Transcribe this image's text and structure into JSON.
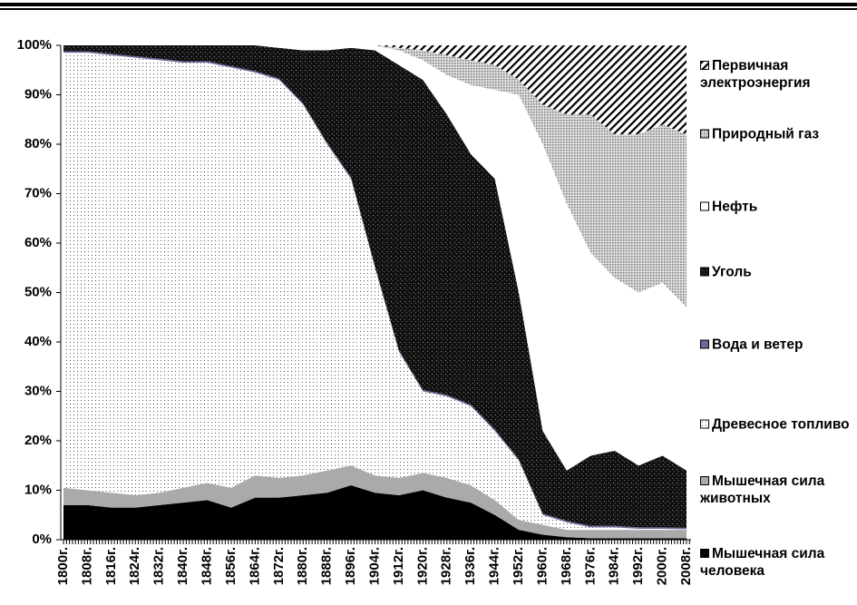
{
  "chart_data": {
    "type": "stacked_area",
    "categories": [
      "1800г.",
      "1808г.",
      "1816г.",
      "1824г.",
      "1832г.",
      "1840г.",
      "1848г.",
      "1856г.",
      "1864г.",
      "1872г.",
      "1880г.",
      "1888г.",
      "1896г.",
      "1904г.",
      "1912г.",
      "1920г.",
      "1928г.",
      "1936г.",
      "1944г.",
      "1952г.",
      "1960г.",
      "1968г.",
      "1976г.",
      "1984г.",
      "1992г.",
      "2000г.",
      "2008г."
    ],
    "series": [
      {
        "name": "Мышечная сила человека",
        "color": "#000000",
        "pattern": "solid",
        "values": [
          7,
          7,
          6.5,
          6.5,
          7,
          7.5,
          8,
          6.5,
          8.5,
          8.5,
          9,
          9.5,
          11,
          9.5,
          9,
          10,
          8.5,
          7.5,
          5,
          2,
          1,
          0.5,
          0.3,
          0.3,
          0.3,
          0.3,
          0.3
        ]
      },
      {
        "name": "Мышечная сила животных",
        "color": "#aaaaaa",
        "pattern": "solid",
        "values": [
          3.5,
          3,
          3,
          2.5,
          2.5,
          3,
          3.5,
          4,
          4.5,
          4,
          4,
          4.5,
          4,
          3.5,
          3.5,
          3.5,
          4,
          3.5,
          3,
          2,
          2,
          1.5,
          1.7,
          1.7,
          1.7,
          1.7,
          1.7
        ]
      },
      {
        "name": "Древесное топливо",
        "color": "#ffffff",
        "pattern": "dots",
        "values": [
          88,
          88.5,
          88.5,
          88.5,
          87.5,
          86,
          85,
          85,
          81.5,
          80.5,
          75,
          66,
          58,
          42,
          25.5,
          16.5,
          16.5,
          16,
          14,
          12,
          2,
          1.5,
          0.5,
          0.5,
          0.2,
          0.2,
          0.1
        ]
      },
      {
        "name": "Вода и ветер",
        "color": "#6b6b9a",
        "pattern": "solid",
        "values": [
          0.3,
          0.3,
          0.3,
          0.3,
          0.3,
          0.3,
          0.3,
          0.3,
          0.3,
          0.3,
          0.3,
          0.3,
          0.3,
          0.3,
          0.3,
          0.3,
          0.3,
          0.3,
          0.3,
          0.3,
          0.3,
          0.3,
          0.3,
          0.3,
          0.3,
          0.3,
          0.3
        ]
      },
      {
        "name": "Уголь",
        "color": "#111111",
        "pattern": "speckle",
        "values": [
          1.2,
          1.2,
          1.7,
          2.2,
          2.7,
          3.2,
          3.2,
          4.2,
          5.2,
          6.2,
          10.7,
          18.7,
          26.2,
          43.7,
          57.7,
          62.7,
          56.7,
          50.7,
          50.7,
          33.7,
          16.7,
          10.2,
          14.2,
          15.2,
          12.5,
          14.5,
          11.6
        ]
      },
      {
        "name": "Нефть",
        "color": "#ffffff",
        "pattern": "solid",
        "values": [
          0,
          0,
          0,
          0,
          0,
          0,
          0,
          0,
          0,
          0.5,
          1,
          1,
          0.5,
          1,
          3,
          4,
          8,
          14,
          18,
          40,
          58,
          54,
          41,
          35,
          35,
          35,
          33
        ]
      },
      {
        "name": "Природный газ",
        "color": "#bbbbbb",
        "pattern": "dots",
        "values": [
          0,
          0,
          0,
          0,
          0,
          0,
          0,
          0,
          0,
          0,
          0,
          0,
          0,
          0,
          0.5,
          2,
          4,
          5,
          5,
          3,
          8,
          18,
          28,
          29,
          32,
          32,
          35
        ]
      },
      {
        "name": "Первичная электроэнергия",
        "color": "#000000",
        "pattern": "hatch",
        "values": [
          0,
          0,
          0,
          0,
          0,
          0,
          0,
          0,
          0,
          0,
          0,
          0,
          0,
          0,
          0.5,
          1,
          2,
          3,
          4,
          7,
          12,
          14,
          14,
          18,
          18,
          16,
          18
        ]
      }
    ],
    "ylim": [
      0,
      100
    ],
    "yticks": [
      {
        "value": 0,
        "label": "0%"
      },
      {
        "value": 10,
        "label": "10%"
      },
      {
        "value": 20,
        "label": "20%"
      },
      {
        "value": 30,
        "label": "30%"
      },
      {
        "value": 40,
        "label": "40%"
      },
      {
        "value": 50,
        "label": "50%"
      },
      {
        "value": 60,
        "label": "60%"
      },
      {
        "value": 70,
        "label": "70%"
      },
      {
        "value": 80,
        "label": "80%"
      },
      {
        "value": 90,
        "label": "90%"
      },
      {
        "value": 100,
        "label": "100%"
      }
    ],
    "legend": "right"
  }
}
